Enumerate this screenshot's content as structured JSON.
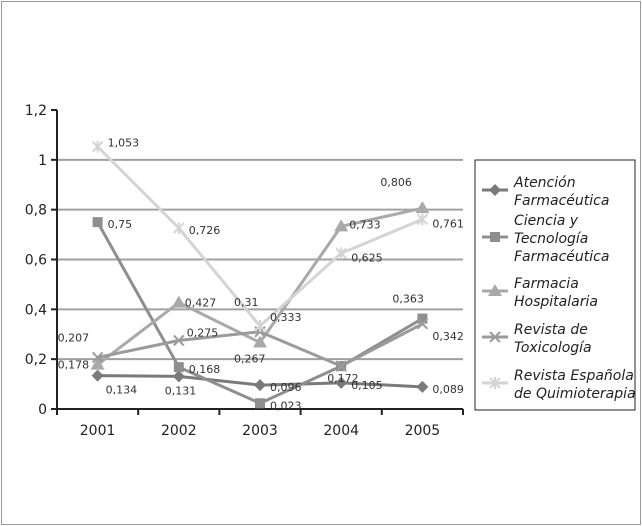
{
  "chart_data": {
    "type": "line",
    "title": "",
    "xlabel": "",
    "ylabel": "",
    "categories": [
      "2001",
      "2002",
      "2003",
      "2004",
      "2005"
    ],
    "ylim": [
      0,
      1.2
    ],
    "yticks": [
      0,
      0.2,
      0.4,
      0.6,
      0.8,
      1,
      1.2
    ],
    "ytick_labels": [
      "0",
      "0,2",
      "0,4",
      "0,6",
      "0,8",
      "1",
      "1,2"
    ],
    "grid": true,
    "legend_position": "right",
    "series": [
      {
        "name": "Atención Farmacéutica",
        "legend_lines": [
          "Atención",
          "Farmacéutica"
        ],
        "marker": "diamond",
        "color": "#7a7a7a",
        "values": [
          0.134,
          0.131,
          0.096,
          0.105,
          0.089
        ],
        "labels": [
          "0,134",
          "0,131",
          "0,096",
          "0,105",
          "0,089"
        ]
      },
      {
        "name": "Ciencia y Tecnología Farmacéutica",
        "legend_lines": [
          "Ciencia y",
          "Tecnología",
          "Farmacéutica"
        ],
        "marker": "square",
        "color": "#8e8e8e",
        "values": [
          0.75,
          0.168,
          0.023,
          0.172,
          0.363
        ],
        "labels": [
          "0,75",
          "0,168",
          "0,023",
          "0,172",
          "0,363"
        ]
      },
      {
        "name": "Farmacia Hospitalaria",
        "legend_lines": [
          "Farmacia",
          "Hospitalaria"
        ],
        "marker": "triangle",
        "color": "#a9a9a9",
        "values": [
          0.178,
          0.427,
          0.267,
          0.733,
          0.806
        ],
        "labels": [
          "0,178",
          "0,427",
          "0,267",
          "0,733",
          "0,806"
        ]
      },
      {
        "name": "Revista de Toxicología",
        "legend_lines": [
          "Revista de",
          "Toxicología"
        ],
        "marker": "x",
        "color": "#9b9b9b",
        "values": [
          0.207,
          0.275,
          0.31,
          0.172,
          0.342
        ],
        "labels": [
          "0,207",
          "0,275",
          "0,31",
          "",
          "0,342"
        ]
      },
      {
        "name": "Revista Española de Quimioterapia",
        "legend_lines": [
          "Revista Española",
          "de Quimioterapia"
        ],
        "marker": "star",
        "color": "#d4d4d4",
        "values": [
          1.053,
          0.726,
          0.333,
          0.625,
          0.761
        ],
        "labels": [
          "1,053",
          "0,726",
          "0,333",
          "0,625",
          "0,761"
        ]
      }
    ]
  }
}
